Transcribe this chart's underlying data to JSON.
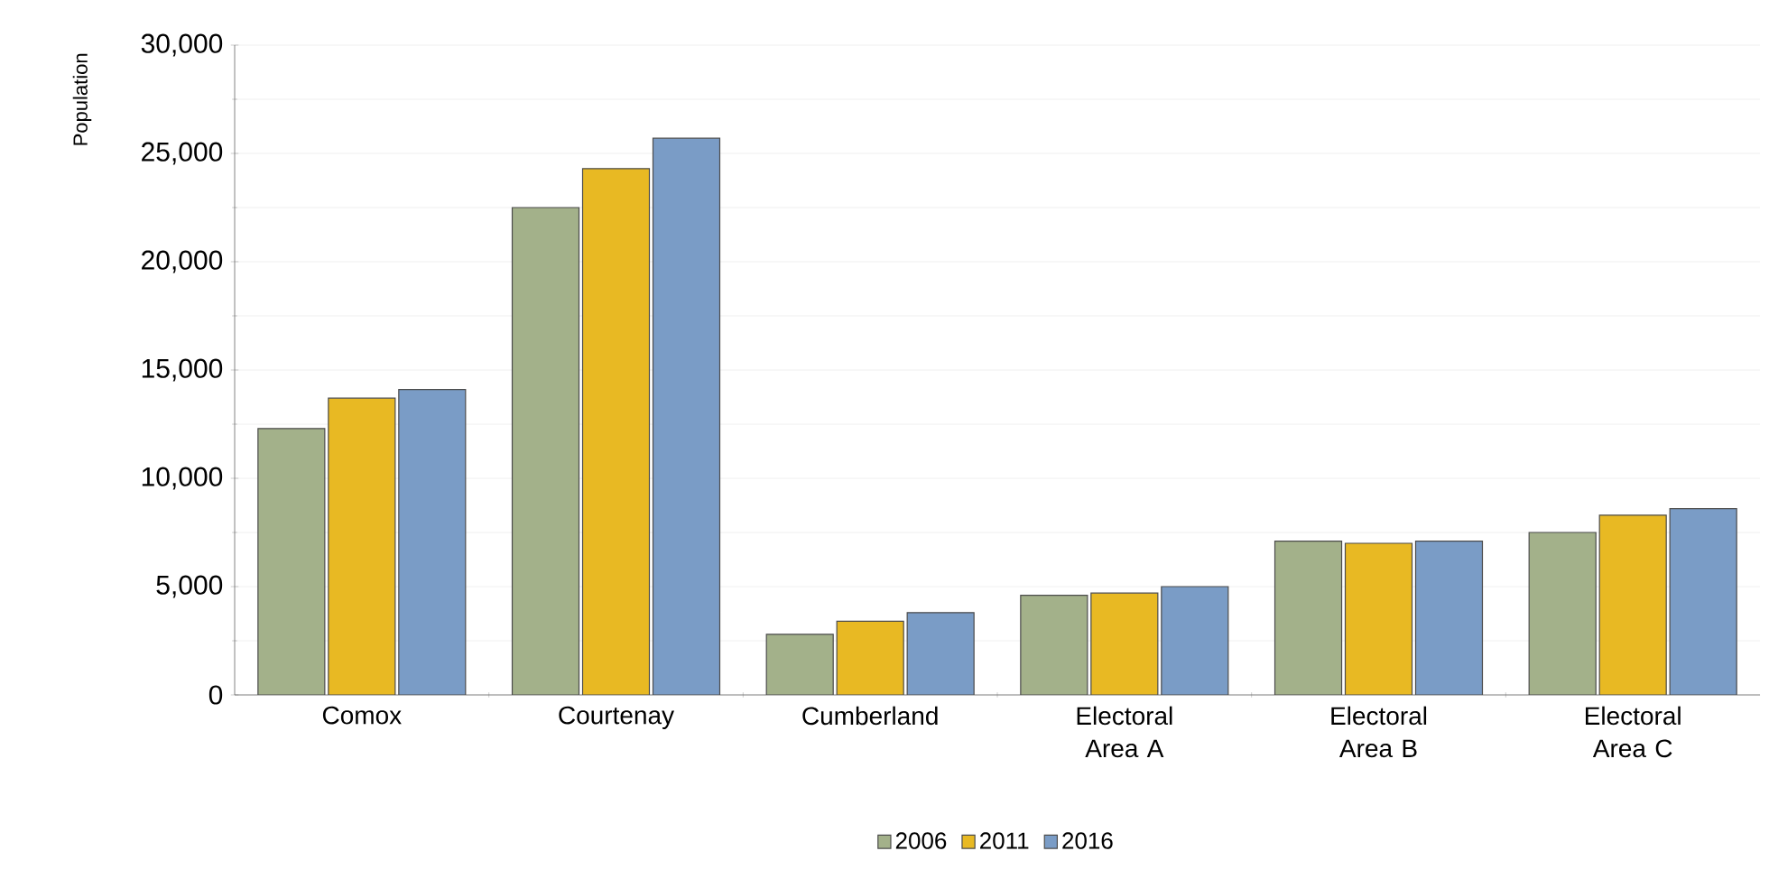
{
  "chart_data": {
    "type": "bar",
    "ylabel": "Population",
    "categories": [
      "Comox",
      "Courtenay",
      "Cumberland",
      "Electoral Area A",
      "Electoral Area B",
      "Electoral Area C"
    ],
    "series": [
      {
        "name": "2006",
        "color": "#a3b18a",
        "values": [
          12300,
          22500,
          2800,
          4600,
          7100,
          7500
        ]
      },
      {
        "name": "2011",
        "color": "#e8b923",
        "values": [
          13700,
          24300,
          3400,
          4700,
          7000,
          8300
        ]
      },
      {
        "name": "2016",
        "color": "#7a9cc6",
        "values": [
          14100,
          25700,
          3800,
          5000,
          7100,
          8600
        ]
      }
    ],
    "ylim": [
      0,
      30000
    ],
    "yticks": [
      {
        "value": 0,
        "label": "0"
      },
      {
        "value": 5000,
        "label": "5,000"
      },
      {
        "value": 10000,
        "label": "10,000"
      },
      {
        "value": 15000,
        "label": "15,000"
      },
      {
        "value": 20000,
        "label": "20,000"
      },
      {
        "value": 25000,
        "label": "25,000"
      },
      {
        "value": 30000,
        "label": "30,000"
      }
    ],
    "grid": "y",
    "legend": "bottom"
  }
}
